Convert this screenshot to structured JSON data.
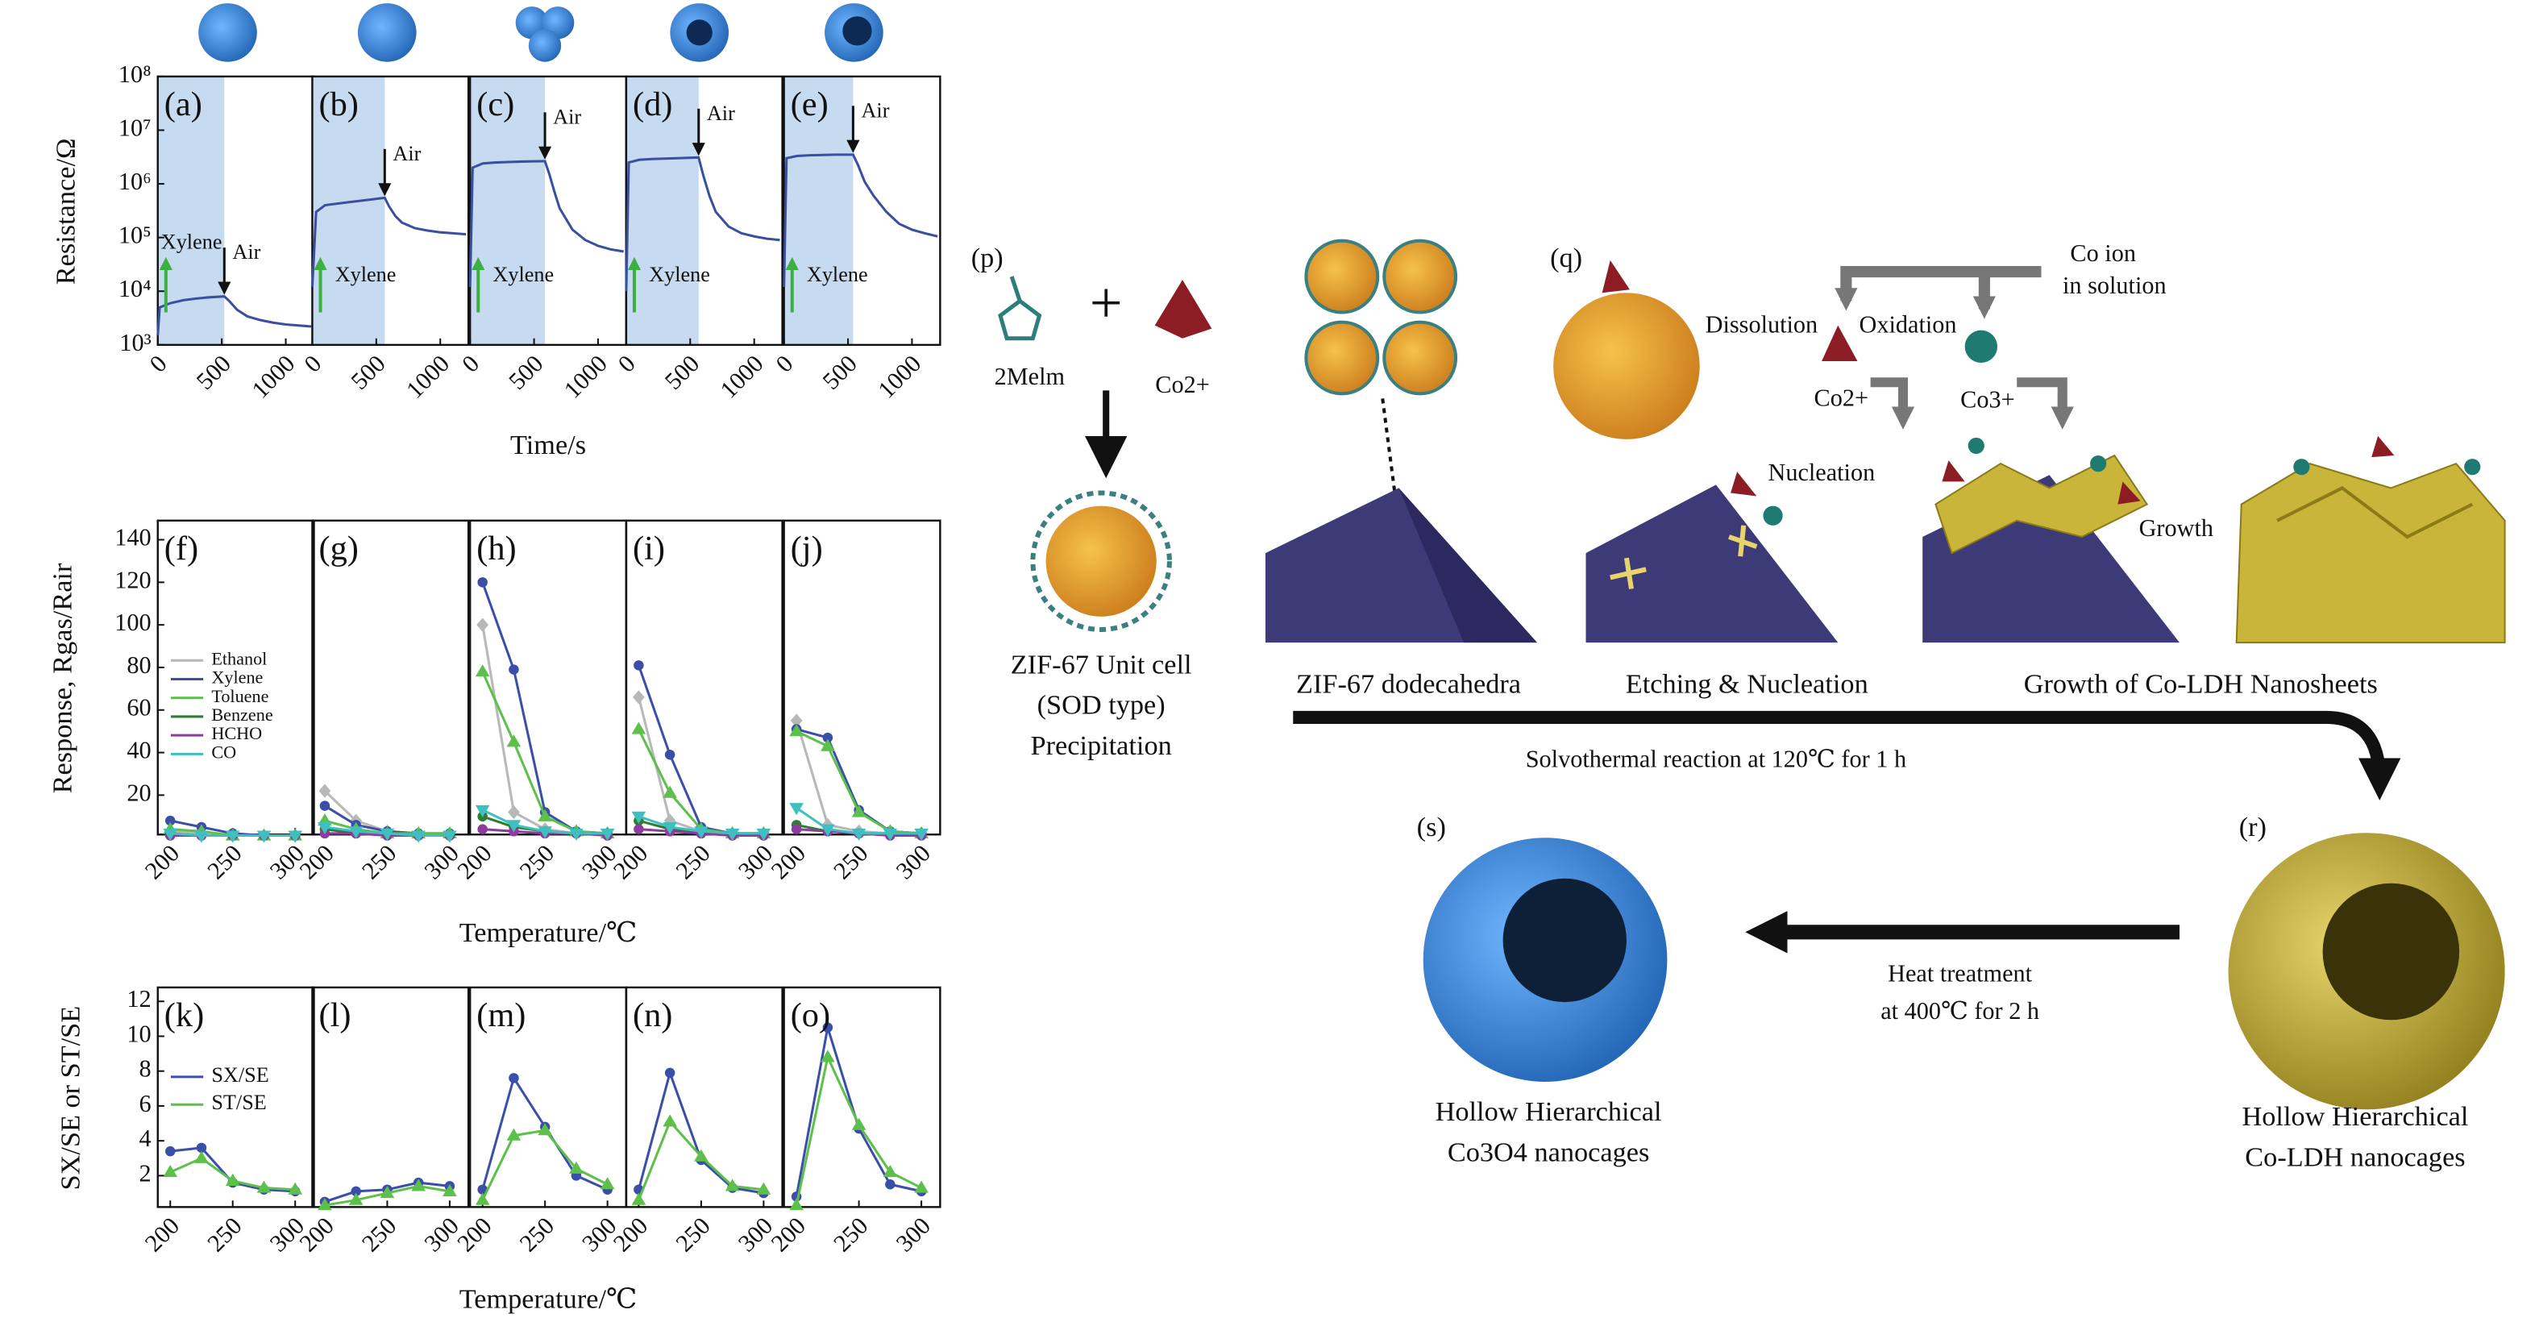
{
  "chart_data": [
    {
      "type": "line",
      "title": "(a)",
      "ylabel": "Resistance/Ω",
      "log_y": true,
      "xlim": [
        0,
        1220
      ],
      "ylim": [
        1000,
        100000000
      ],
      "xticks": [
        0,
        500,
        1000
      ],
      "yticks": [
        {
          "value": 1000,
          "label": "10³"
        },
        {
          "value": 10000,
          "label": "10⁴"
        },
        {
          "value": 100000,
          "label": "10⁵"
        },
        {
          "value": 1000000,
          "label": "10⁶"
        },
        {
          "value": 10000000,
          "label": "10⁷"
        },
        {
          "value": 100000000,
          "label": "10⁸"
        }
      ],
      "shade_x": [
        0,
        520
      ],
      "gas_label": "Xylene",
      "air_label": "Air",
      "x": [
        0,
        15,
        100,
        200,
        300,
        400,
        520,
        560,
        620,
        700,
        800,
        900,
        1000,
        1100,
        1200
      ],
      "series": [
        {
          "color": "#3a4fa0",
          "values": [
            1500,
            5000,
            6000,
            6800,
            7300,
            7700,
            8000,
            6500,
            4500,
            3400,
            2900,
            2600,
            2400,
            2300,
            2200
          ]
        }
      ]
    },
    {
      "type": "line",
      "title": "(b)",
      "log_y": true,
      "xlim": [
        0,
        1220
      ],
      "ylim": [
        1000,
        100000000
      ],
      "xticks": [
        0,
        500,
        1000
      ],
      "shade_x": [
        0,
        566
      ],
      "gas_label": "Xylene",
      "air_label": "Air",
      "x": [
        0,
        30,
        100,
        200,
        300,
        400,
        566,
        600,
        650,
        700,
        800,
        900,
        1000,
        1100,
        1200
      ],
      "series": [
        {
          "color": "#3a4fa0",
          "values": [
            12000,
            300000,
            400000,
            430000,
            460000,
            490000,
            550000,
            380000,
            250000,
            190000,
            150000,
            135000,
            125000,
            120000,
            115000
          ]
        }
      ]
    },
    {
      "type": "line",
      "title": "(c)",
      "xlabel": "Time/s",
      "log_y": true,
      "xlim": [
        0,
        1220
      ],
      "ylim": [
        1000,
        100000000
      ],
      "xticks": [
        0,
        500,
        1000
      ],
      "shade_x": [
        0,
        585
      ],
      "gas_label": "Xylene",
      "air_label": "Air",
      "x": [
        0,
        20,
        100,
        200,
        300,
        400,
        585,
        620,
        660,
        700,
        800,
        900,
        1000,
        1100,
        1200
      ],
      "series": [
        {
          "color": "#3a4fa0",
          "values": [
            12000,
            2000000,
            2400000,
            2500000,
            2550000,
            2600000,
            2650000,
            1500000,
            700000,
            350000,
            140000,
            90000,
            70000,
            60000,
            55000
          ]
        }
      ]
    },
    {
      "type": "line",
      "title": "(d)",
      "log_y": true,
      "xlim": [
        0,
        1220
      ],
      "ylim": [
        1000,
        100000000
      ],
      "xticks": [
        0,
        500,
        1000
      ],
      "shade_x": [
        0,
        566
      ],
      "gas_label": "Xylene",
      "air_label": "Air",
      "x": [
        0,
        20,
        100,
        200,
        300,
        400,
        566,
        600,
        650,
        700,
        800,
        900,
        1000,
        1100,
        1200
      ],
      "series": [
        {
          "color": "#3a4fa0",
          "values": [
            10000,
            2500000,
            2800000,
            2900000,
            2950000,
            3000000,
            3100000,
            1500000,
            600000,
            300000,
            160000,
            120000,
            105000,
            95000,
            90000
          ]
        }
      ]
    },
    {
      "type": "line",
      "title": "(e)",
      "log_y": true,
      "xlim": [
        0,
        1220
      ],
      "ylim": [
        1000,
        100000000
      ],
      "xticks": [
        0,
        500,
        1000
      ],
      "shade_x": [
        0,
        540
      ],
      "gas_label": "Xylene",
      "air_label": "Air",
      "x": [
        0,
        20,
        100,
        200,
        300,
        400,
        540,
        580,
        630,
        700,
        800,
        900,
        1000,
        1100,
        1200
      ],
      "series": [
        {
          "color": "#3a4fa0",
          "values": [
            12000,
            3000000,
            3300000,
            3400000,
            3450000,
            3500000,
            3500000,
            2200000,
            1100000,
            600000,
            300000,
            180000,
            140000,
            120000,
            105000
          ]
        }
      ]
    },
    {
      "type": "line",
      "title": "(f)",
      "ylabel": "Response, Rgas/Rair",
      "legend": "left",
      "xlim": [
        190,
        315
      ],
      "ylim": [
        1.5,
        149
      ],
      "xticks": [
        200,
        250,
        300
      ],
      "yticks": [
        20,
        40,
        60,
        80,
        100,
        120,
        140
      ],
      "x": [
        200,
        225,
        250,
        275,
        300
      ],
      "series": [
        {
          "name": "Ethanol",
          "color": "#b8b8b8",
          "marker": "diamond",
          "values": [
            3,
            2,
            1,
            1,
            1
          ]
        },
        {
          "name": "Xylene",
          "color": "#3b4fa8",
          "marker": "circle",
          "values": [
            8,
            5,
            2,
            1,
            1
          ]
        },
        {
          "name": "Toluene",
          "color": "#5cc04a",
          "marker": "triangle",
          "values": [
            4,
            3,
            1,
            1,
            1
          ]
        },
        {
          "name": "Benzene",
          "color": "#2e7d32",
          "marker": "circle",
          "values": [
            2,
            1,
            1,
            1,
            1
          ]
        },
        {
          "name": "HCHO",
          "color": "#8e3a9e",
          "marker": "circle",
          "values": [
            1,
            1,
            1,
            1,
            1
          ]
        },
        {
          "name": "CO",
          "color": "#3fbfbf",
          "marker": "tridown",
          "values": [
            2,
            1,
            1,
            1,
            1
          ]
        }
      ]
    },
    {
      "type": "line",
      "title": "(g)",
      "xlim": [
        190,
        315
      ],
      "ylim": [
        1.5,
        149
      ],
      "xticks": [
        200,
        250,
        300
      ],
      "x": [
        200,
        225,
        250,
        275,
        300
      ],
      "series": [
        {
          "color": "#b8b8b8",
          "marker": "diamond",
          "values": [
            22,
            8,
            3,
            2,
            2
          ]
        },
        {
          "color": "#3b4fa8",
          "marker": "circle",
          "values": [
            15,
            6,
            3,
            2,
            2
          ]
        },
        {
          "color": "#5cc04a",
          "marker": "triangle",
          "values": [
            8,
            4,
            2,
            2,
            2
          ]
        },
        {
          "color": "#2e7d32",
          "marker": "circle",
          "values": [
            4,
            2,
            2,
            1,
            1
          ]
        },
        {
          "color": "#8e3a9e",
          "marker": "circle",
          "values": [
            2,
            2,
            1,
            1,
            1
          ]
        },
        {
          "color": "#3fbfbf",
          "marker": "tridown",
          "values": [
            5,
            3,
            2,
            1,
            1
          ]
        }
      ]
    },
    {
      "type": "line",
      "title": "(h)",
      "xlabel": "Temperature/℃",
      "xlim": [
        190,
        315
      ],
      "ylim": [
        1.5,
        149
      ],
      "xticks": [
        200,
        250,
        300
      ],
      "x": [
        200,
        225,
        250,
        275,
        300
      ],
      "series": [
        {
          "color": "#b8b8b8",
          "marker": "diamond",
          "values": [
            100,
            12,
            4,
            2,
            2
          ]
        },
        {
          "color": "#3b4fa8",
          "marker": "circle",
          "values": [
            120,
            79,
            12,
            3,
            2
          ]
        },
        {
          "color": "#5cc04a",
          "marker": "triangle",
          "values": [
            78,
            45,
            10,
            3,
            2
          ]
        },
        {
          "color": "#2e7d32",
          "marker": "circle",
          "values": [
            10,
            5,
            3,
            2,
            2
          ]
        },
        {
          "color": "#8e3a9e",
          "marker": "circle",
          "values": [
            4,
            3,
            2,
            2,
            1
          ]
        },
        {
          "color": "#3fbfbf",
          "marker": "tridown",
          "values": [
            13,
            6,
            3,
            2,
            2
          ]
        }
      ]
    },
    {
      "type": "line",
      "title": "(i)",
      "xlim": [
        190,
        315
      ],
      "ylim": [
        1.5,
        149
      ],
      "xticks": [
        200,
        250,
        300
      ],
      "x": [
        200,
        225,
        250,
        275,
        300
      ],
      "series": [
        {
          "color": "#b8b8b8",
          "marker": "diamond",
          "values": [
            66,
            8,
            3,
            2,
            2
          ]
        },
        {
          "color": "#3b4fa8",
          "marker": "circle",
          "values": [
            81,
            39,
            5,
            2,
            2
          ]
        },
        {
          "color": "#5cc04a",
          "marker": "triangle",
          "values": [
            51,
            21,
            4,
            2,
            2
          ]
        },
        {
          "color": "#2e7d32",
          "marker": "circle",
          "values": [
            8,
            4,
            2,
            2,
            2
          ]
        },
        {
          "color": "#8e3a9e",
          "marker": "circle",
          "values": [
            4,
            3,
            2,
            1,
            1
          ]
        },
        {
          "color": "#3fbfbf",
          "marker": "tridown",
          "values": [
            10,
            5,
            3,
            2,
            2
          ]
        }
      ]
    },
    {
      "type": "line",
      "title": "(j)",
      "xlim": [
        190,
        315
      ],
      "ylim": [
        1.5,
        149
      ],
      "xticks": [
        200,
        250,
        300
      ],
      "x": [
        200,
        225,
        250,
        275,
        300
      ],
      "series": [
        {
          "color": "#b8b8b8",
          "marker": "diamond",
          "values": [
            55,
            6,
            3,
            2,
            2
          ]
        },
        {
          "color": "#3b4fa8",
          "marker": "circle",
          "values": [
            51,
            47,
            13,
            3,
            2
          ]
        },
        {
          "color": "#5cc04a",
          "marker": "triangle",
          "values": [
            50,
            43,
            12,
            3,
            2
          ]
        },
        {
          "color": "#2e7d32",
          "marker": "circle",
          "values": [
            6,
            3,
            2,
            2,
            2
          ]
        },
        {
          "color": "#8e3a9e",
          "marker": "circle",
          "values": [
            4,
            3,
            2,
            1,
            1
          ]
        },
        {
          "color": "#3fbfbf",
          "marker": "tridown",
          "values": [
            14,
            4,
            2,
            2,
            2
          ]
        }
      ]
    },
    {
      "type": "line",
      "title": "(k)",
      "ylabel": "SX/SE or ST/SE",
      "legend": "left",
      "xlim": [
        190,
        315
      ],
      "ylim": [
        0.2,
        12.8
      ],
      "xticks": [
        200,
        250,
        300
      ],
      "yticks": [
        2,
        4,
        6,
        8,
        10,
        12
      ],
      "x": [
        200,
        225,
        250,
        275,
        300
      ],
      "series": [
        {
          "name": "SX/SE",
          "color": "#3b4fa8",
          "marker": "circle",
          "values": [
            3.4,
            3.6,
            1.6,
            1.2,
            1.1
          ]
        },
        {
          "name": "ST/SE",
          "color": "#5cc04a",
          "marker": "triangle",
          "values": [
            2.2,
            3.0,
            1.7,
            1.3,
            1.2
          ]
        }
      ]
    },
    {
      "type": "line",
      "title": "(l)",
      "xlim": [
        190,
        315
      ],
      "ylim": [
        0.2,
        12.8
      ],
      "xticks": [
        200,
        250,
        300
      ],
      "x": [
        200,
        225,
        250,
        275,
        300
      ],
      "series": [
        {
          "color": "#3b4fa8",
          "marker": "circle",
          "values": [
            0.5,
            1.1,
            1.2,
            1.6,
            1.4
          ]
        },
        {
          "color": "#5cc04a",
          "marker": "triangle",
          "values": [
            0.3,
            0.6,
            1.0,
            1.4,
            1.1
          ]
        }
      ]
    },
    {
      "type": "line",
      "title": "(m)",
      "xlabel": "Temperature/℃",
      "xlim": [
        190,
        315
      ],
      "ylim": [
        0.2,
        12.8
      ],
      "xticks": [
        200,
        250,
        300
      ],
      "x": [
        200,
        225,
        250,
        275,
        300
      ],
      "series": [
        {
          "color": "#3b4fa8",
          "marker": "circle",
          "values": [
            1.2,
            7.6,
            4.8,
            2.0,
            1.2
          ]
        },
        {
          "color": "#5cc04a",
          "marker": "triangle",
          "values": [
            0.6,
            4.3,
            4.6,
            2.4,
            1.5
          ]
        }
      ]
    },
    {
      "type": "line",
      "title": "(n)",
      "xlim": [
        190,
        315
      ],
      "ylim": [
        0.2,
        12.8
      ],
      "xticks": [
        200,
        250,
        300
      ],
      "x": [
        200,
        225,
        250,
        275,
        300
      ],
      "series": [
        {
          "color": "#3b4fa8",
          "marker": "circle",
          "values": [
            1.2,
            7.9,
            2.9,
            1.3,
            1.0
          ]
        },
        {
          "color": "#5cc04a",
          "marker": "triangle",
          "values": [
            0.6,
            5.1,
            3.1,
            1.4,
            1.2
          ]
        }
      ]
    },
    {
      "type": "line",
      "title": "(o)",
      "xlim": [
        190,
        315
      ],
      "ylim": [
        0.2,
        12.8
      ],
      "xticks": [
        200,
        250,
        300
      ],
      "x": [
        200,
        225,
        250,
        275,
        300
      ],
      "series": [
        {
          "color": "#3b4fa8",
          "marker": "circle",
          "values": [
            0.8,
            10.5,
            4.7,
            1.5,
            1.1
          ]
        },
        {
          "color": "#5cc04a",
          "marker": "triangle",
          "values": [
            0.3,
            8.8,
            4.9,
            2.2,
            1.3
          ]
        }
      ]
    }
  ],
  "diagram": {
    "p_label": "(p)",
    "ligand": "2Melm",
    "metal_ion": "Co2+",
    "unit_cell": [
      "ZIF-67 Unit cell",
      "(SOD type)",
      "Precipitation"
    ],
    "q_label": "(q)",
    "dissolution": "Dissolution",
    "oxidation": "Oxidation",
    "co_ion": [
      "Co ion",
      "in solution"
    ],
    "co2": "Co2+",
    "co3": "Co3+",
    "nucleation": "Nucleation",
    "growth": "Growth",
    "stages": [
      "ZIF-67 dodecahedra",
      "Etching & Nucleation",
      "Growth of Co-LDH Nanosheets"
    ],
    "solvothermal": "Solvothermal reaction at 120℃ for 1 h",
    "r_label": "(r)",
    "s_label": "(s)",
    "heat": [
      "Heat treatment",
      "at 400℃ for 2 h"
    ],
    "co3o4_caption": [
      "Hollow Hierarchical",
      "Co3O4 nanocages"
    ],
    "ldh_caption": [
      "Hollow Hierarchical",
      "Co-LDH nanocages"
    ]
  }
}
